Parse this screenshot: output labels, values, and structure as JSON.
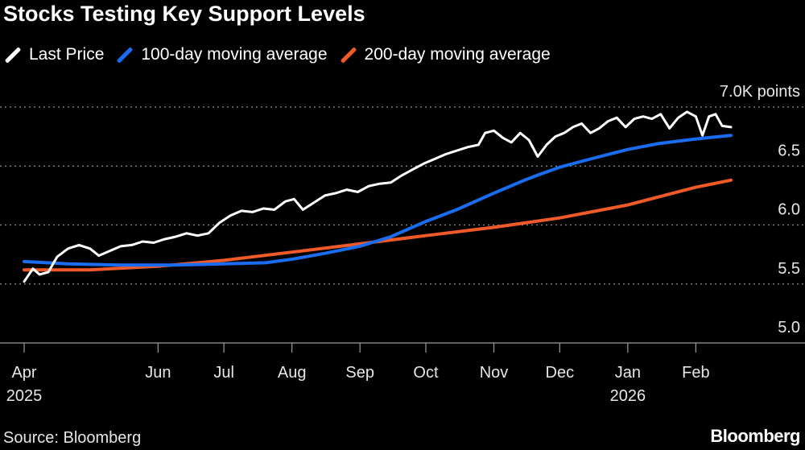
{
  "chart_data": {
    "type": "line",
    "title": "Stocks Testing Key Support Levels",
    "y_unit_label": "7.0K points",
    "ylim": [
      5.0,
      7.0
    ],
    "y_ticks": [
      {
        "value": 7.0,
        "label": "7.0K points"
      },
      {
        "value": 6.5,
        "label": "6.5"
      },
      {
        "value": 6.0,
        "label": "6.0"
      },
      {
        "value": 5.5,
        "label": "5.5"
      },
      {
        "value": 5.0,
        "label": "5.0"
      }
    ],
    "x_ticks": [
      {
        "date": "2025-04-01",
        "label": "Apr",
        "year": "2025"
      },
      {
        "date": "2025-06-01",
        "label": "Jun"
      },
      {
        "date": "2025-07-01",
        "label": "Jul"
      },
      {
        "date": "2025-08-01",
        "label": "Aug"
      },
      {
        "date": "2025-09-01",
        "label": "Sep"
      },
      {
        "date": "2025-10-01",
        "label": "Oct"
      },
      {
        "date": "2025-11-01",
        "label": "Nov"
      },
      {
        "date": "2025-12-01",
        "label": "Dec"
      },
      {
        "date": "2026-01-01",
        "label": "Jan",
        "year": "2026"
      },
      {
        "date": "2026-02-01",
        "label": "Feb"
      }
    ],
    "grid": true,
    "legend_position": "top",
    "series": [
      {
        "name": "Last Price",
        "color": "#ffffff",
        "points": [
          [
            "2025-04-01",
            5.52
          ],
          [
            "2025-04-05",
            5.63
          ],
          [
            "2025-04-08",
            5.58
          ],
          [
            "2025-04-12",
            5.6
          ],
          [
            "2025-04-16",
            5.73
          ],
          [
            "2025-04-21",
            5.8
          ],
          [
            "2025-04-26",
            5.83
          ],
          [
            "2025-05-01",
            5.8
          ],
          [
            "2025-05-05",
            5.74
          ],
          [
            "2025-05-10",
            5.78
          ],
          [
            "2025-05-15",
            5.82
          ],
          [
            "2025-05-20",
            5.83
          ],
          [
            "2025-05-25",
            5.86
          ],
          [
            "2025-05-30",
            5.85
          ],
          [
            "2025-06-04",
            5.88
          ],
          [
            "2025-06-09",
            5.9
          ],
          [
            "2025-06-14",
            5.93
          ],
          [
            "2025-06-19",
            5.91
          ],
          [
            "2025-06-24",
            5.93
          ],
          [
            "2025-06-29",
            6.02
          ],
          [
            "2025-07-04",
            6.08
          ],
          [
            "2025-07-09",
            6.12
          ],
          [
            "2025-07-14",
            6.11
          ],
          [
            "2025-07-19",
            6.14
          ],
          [
            "2025-07-24",
            6.13
          ],
          [
            "2025-07-29",
            6.2
          ],
          [
            "2025-08-02",
            6.22
          ],
          [
            "2025-08-06",
            6.13
          ],
          [
            "2025-08-11",
            6.19
          ],
          [
            "2025-08-16",
            6.25
          ],
          [
            "2025-08-21",
            6.27
          ],
          [
            "2025-08-26",
            6.3
          ],
          [
            "2025-08-31",
            6.28
          ],
          [
            "2025-09-05",
            6.33
          ],
          [
            "2025-09-10",
            6.35
          ],
          [
            "2025-09-15",
            6.36
          ],
          [
            "2025-09-20",
            6.42
          ],
          [
            "2025-09-25",
            6.47
          ],
          [
            "2025-09-30",
            6.52
          ],
          [
            "2025-10-05",
            6.56
          ],
          [
            "2025-10-10",
            6.6
          ],
          [
            "2025-10-15",
            6.63
          ],
          [
            "2025-10-20",
            6.66
          ],
          [
            "2025-10-25",
            6.68
          ],
          [
            "2025-10-28",
            6.78
          ],
          [
            "2025-11-01",
            6.8
          ],
          [
            "2025-11-05",
            6.74
          ],
          [
            "2025-11-09",
            6.7
          ],
          [
            "2025-11-13",
            6.78
          ],
          [
            "2025-11-17",
            6.72
          ],
          [
            "2025-11-21",
            6.58
          ],
          [
            "2025-11-25",
            6.68
          ],
          [
            "2025-11-29",
            6.75
          ],
          [
            "2025-12-03",
            6.78
          ],
          [
            "2025-12-07",
            6.83
          ],
          [
            "2025-12-11",
            6.86
          ],
          [
            "2025-12-15",
            6.78
          ],
          [
            "2025-12-19",
            6.82
          ],
          [
            "2025-12-23",
            6.88
          ],
          [
            "2025-12-27",
            6.91
          ],
          [
            "2025-12-31",
            6.83
          ],
          [
            "2026-01-04",
            6.9
          ],
          [
            "2026-01-08",
            6.92
          ],
          [
            "2026-01-12",
            6.9
          ],
          [
            "2026-01-16",
            6.94
          ],
          [
            "2026-01-20",
            6.82
          ],
          [
            "2026-01-24",
            6.91
          ],
          [
            "2026-01-28",
            6.96
          ],
          [
            "2026-02-01",
            6.92
          ],
          [
            "2026-02-04",
            6.76
          ],
          [
            "2026-02-07",
            6.92
          ],
          [
            "2026-02-10",
            6.94
          ],
          [
            "2026-02-13",
            6.84
          ],
          [
            "2026-02-17",
            6.83
          ]
        ]
      },
      {
        "name": "100-day moving average",
        "color": "#1a6cf0",
        "points": [
          [
            "2025-04-01",
            5.69
          ],
          [
            "2025-04-21",
            5.67
          ],
          [
            "2025-05-15",
            5.66
          ],
          [
            "2025-06-09",
            5.66
          ],
          [
            "2025-07-01",
            5.67
          ],
          [
            "2025-07-20",
            5.68
          ],
          [
            "2025-08-01",
            5.71
          ],
          [
            "2025-08-16",
            5.76
          ],
          [
            "2025-09-01",
            5.82
          ],
          [
            "2025-09-15",
            5.9
          ],
          [
            "2025-10-01",
            6.03
          ],
          [
            "2025-10-15",
            6.13
          ],
          [
            "2025-11-01",
            6.27
          ],
          [
            "2025-11-15",
            6.38
          ],
          [
            "2025-11-22",
            6.43
          ],
          [
            "2025-12-01",
            6.49
          ],
          [
            "2025-12-15",
            6.56
          ],
          [
            "2026-01-01",
            6.64
          ],
          [
            "2026-01-15",
            6.69
          ],
          [
            "2026-02-01",
            6.73
          ],
          [
            "2026-02-17",
            6.76
          ]
        ]
      },
      {
        "name": "200-day moving average",
        "color": "#f05a28",
        "points": [
          [
            "2025-04-01",
            5.62
          ],
          [
            "2025-05-01",
            5.62
          ],
          [
            "2025-06-01",
            5.65
          ],
          [
            "2025-07-01",
            5.7
          ],
          [
            "2025-08-01",
            5.77
          ],
          [
            "2025-09-01",
            5.84
          ],
          [
            "2025-10-01",
            5.91
          ],
          [
            "2025-11-01",
            5.98
          ],
          [
            "2025-12-01",
            6.06
          ],
          [
            "2026-01-01",
            6.17
          ],
          [
            "2026-02-01",
            6.32
          ],
          [
            "2026-02-17",
            6.38
          ]
        ]
      }
    ]
  },
  "source": "Source: Bloomberg",
  "brand": "Bloomberg"
}
